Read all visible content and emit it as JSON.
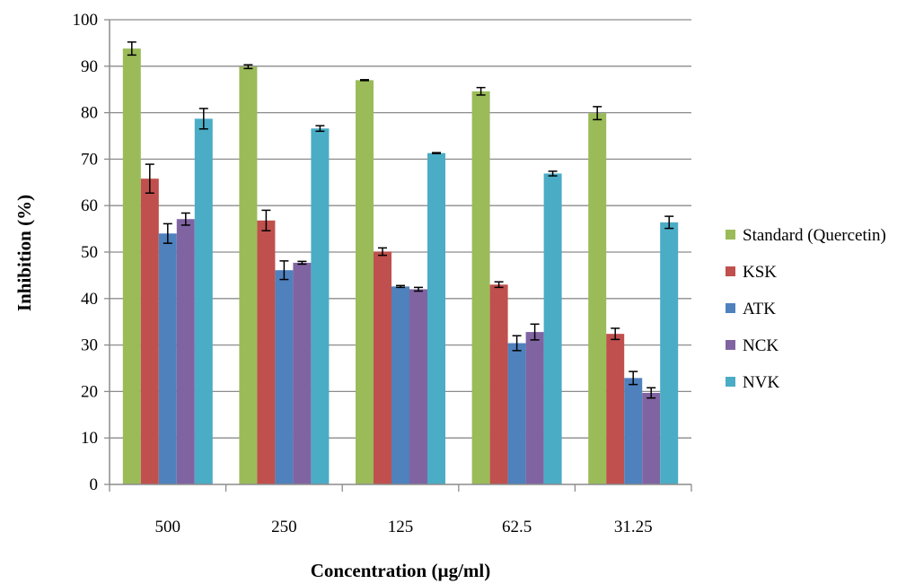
{
  "chart_data": {
    "type": "bar",
    "title": "",
    "xlabel": "Concentration (µg/ml)",
    "ylabel": "Inhibition (%)",
    "ylim": [
      0,
      100
    ],
    "yticks": [
      0,
      10,
      20,
      30,
      40,
      50,
      60,
      70,
      80,
      90,
      100
    ],
    "grid": true,
    "legend_position": "right",
    "categories": [
      "500",
      "250",
      "125",
      "62.5",
      "31.25"
    ],
    "series": [
      {
        "name": "Standard (Quercetin)",
        "color": "#9bbb59",
        "values": [
          93.8,
          89.9,
          87.0,
          84.6,
          79.9
        ],
        "errors": [
          1.4,
          0.4,
          0.1,
          0.8,
          1.4
        ]
      },
      {
        "name": "KSK",
        "color": "#c0504d",
        "values": [
          65.8,
          56.8,
          50.1,
          43.0,
          32.4
        ],
        "errors": [
          3.1,
          2.2,
          0.8,
          0.6,
          1.2
        ]
      },
      {
        "name": "ATK",
        "color": "#4f81bd",
        "values": [
          54.0,
          46.1,
          42.6,
          30.4,
          22.9
        ],
        "errors": [
          2.1,
          2.0,
          0.2,
          1.6,
          1.4
        ]
      },
      {
        "name": "NCK",
        "color": "#8064a2",
        "values": [
          57.1,
          47.7,
          42.0,
          32.8,
          19.7
        ],
        "errors": [
          1.3,
          0.3,
          0.4,
          1.7,
          1.1
        ]
      },
      {
        "name": "NVK",
        "color": "#4bacc6",
        "values": [
          78.7,
          76.6,
          71.3,
          66.9,
          56.4
        ],
        "errors": [
          2.2,
          0.6,
          0.1,
          0.5,
          1.3
        ]
      }
    ]
  }
}
